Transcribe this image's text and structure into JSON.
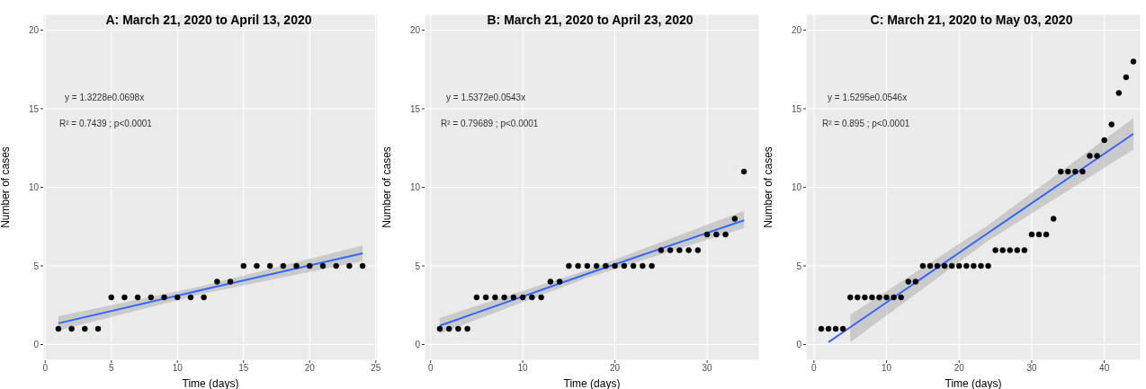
{
  "chart_data": [
    {
      "type": "scatter",
      "title": "A: March 21, 2020 to April 13, 2020",
      "xlabel": "Time (days)",
      "ylabel": "Number of cases",
      "xlim": [
        -0.15,
        25.15
      ],
      "xticks": [
        0,
        5,
        10,
        15,
        20,
        25
      ],
      "ylim": [
        -1,
        21
      ],
      "yticks": [
        0,
        5,
        10,
        15,
        20
      ],
      "grid": true,
      "annotations": [
        "y = 1.3228e0.0698x",
        "R² = 0.7439 ; p<0.0001"
      ],
      "x": [
        1,
        2,
        3,
        4,
        5,
        6,
        7,
        8,
        9,
        10,
        11,
        12,
        13,
        14,
        15,
        16,
        17,
        18,
        19,
        20,
        21,
        22,
        23,
        24
      ],
      "series": [
        {
          "type": "line",
          "marker": "none",
          "color": "#3366ff",
          "x": [
            1,
            12,
            24
          ],
          "values": [
            1.35,
            3.5,
            5.8
          ],
          "lower": [
            0.9,
            3.25,
            5.3
          ],
          "upper": [
            1.8,
            3.75,
            6.3
          ]
        },
        {
          "marker": "circle",
          "color": "#000000",
          "values": [
            1,
            1,
            1,
            1,
            3,
            3,
            3,
            3,
            3,
            3,
            3,
            3,
            4,
            4,
            5,
            5,
            5,
            5,
            5,
            5,
            5,
            5,
            5,
            5
          ]
        }
      ]
    },
    {
      "type": "scatter",
      "title": "B: March 21, 2020 to April 23, 2020",
      "xlabel": "Time (days)",
      "ylabel": "Number of cases",
      "xlim": [
        -0.65,
        35.65
      ],
      "xticks": [
        0,
        10,
        20,
        30
      ],
      "ylim": [
        -1,
        21
      ],
      "yticks": [
        0,
        5,
        10,
        15,
        20
      ],
      "grid": true,
      "annotations": [
        "y = 1.5372e0.0543x",
        "R² = 0.79689 ; p<0.0001"
      ],
      "x": [
        1,
        2,
        3,
        4,
        5,
        6,
        7,
        8,
        9,
        10,
        11,
        12,
        13,
        14,
        15,
        16,
        17,
        18,
        19,
        20,
        21,
        22,
        23,
        24,
        25,
        26,
        27,
        28,
        29,
        30,
        31,
        32,
        33,
        34
      ],
      "series": [
        {
          "type": "line",
          "marker": "none",
          "color": "#3366ff",
          "x": [
            1,
            17,
            34
          ],
          "values": [
            1.2,
            4.5,
            7.9
          ],
          "lower": [
            0.7,
            4.25,
            7.4
          ],
          "upper": [
            1.7,
            4.75,
            8.5
          ]
        },
        {
          "marker": "circle",
          "color": "#000000",
          "values": [
            1,
            1,
            1,
            1,
            3,
            3,
            3,
            3,
            3,
            3,
            3,
            3,
            4,
            4,
            5,
            5,
            5,
            5,
            5,
            5,
            5,
            5,
            5,
            5,
            6,
            6,
            6,
            6,
            6,
            7,
            7,
            7,
            8,
            11
          ]
        }
      ]
    },
    {
      "type": "scatter",
      "title": "C: March 21, 2020 to May 03, 2020",
      "xlabel": "Time (days)",
      "ylabel": "Number of cases",
      "xlim": [
        -1.1,
        45
      ],
      "xticks": [
        0,
        10,
        20,
        30,
        40
      ],
      "ylim": [
        -1,
        21
      ],
      "yticks": [
        0,
        5,
        10,
        15,
        20
      ],
      "grid": true,
      "annotations": [
        "y = 1.5295e0.0546x",
        "R² = 0.895 ; p<0.0001"
      ],
      "x": [
        1,
        2,
        3,
        4,
        5,
        6,
        7,
        8,
        9,
        10,
        11,
        12,
        13,
        14,
        15,
        16,
        17,
        18,
        19,
        20,
        21,
        22,
        23,
        24,
        25,
        26,
        27,
        28,
        29,
        30,
        31,
        32,
        33,
        34,
        35,
        36,
        37,
        38,
        39,
        40,
        41,
        42,
        43,
        44
      ],
      "series": [
        {
          "type": "line",
          "marker": "none",
          "color": "#3366ff",
          "x": [
            2,
            5,
            24,
            44
          ],
          "values": [
            0.15,
            1.1,
            7.1,
            13.4
          ],
          "lower": [
            null,
            0.15,
            6.6,
            12.4
          ],
          "upper": [
            null,
            1.9,
            7.6,
            14.4
          ]
        },
        {
          "marker": "circle",
          "color": "#000000",
          "values": [
            1,
            1,
            1,
            1,
            3,
            3,
            3,
            3,
            3,
            3,
            3,
            3,
            4,
            4,
            5,
            5,
            5,
            5,
            5,
            5,
            5,
            5,
            5,
            5,
            6,
            6,
            6,
            6,
            6,
            7,
            7,
            7,
            8,
            11,
            11,
            11,
            11,
            12,
            12,
            13,
            14,
            16,
            17,
            18
          ]
        }
      ]
    }
  ]
}
